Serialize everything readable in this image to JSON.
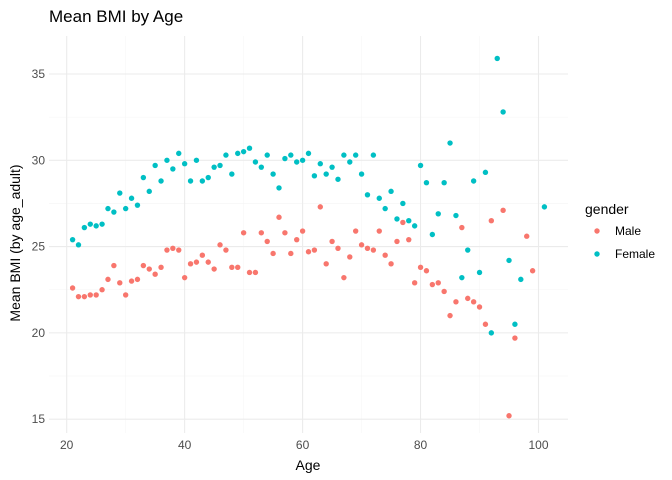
{
  "chart_data": {
    "type": "scatter",
    "title": "Mean BMI by Age",
    "xlabel": "Age",
    "ylabel": "Mean BMI (by age_adult)",
    "xlim": [
      17,
      105
    ],
    "ylim": [
      14.2,
      37.2
    ],
    "x_ticks": [
      20,
      40,
      60,
      80,
      100
    ],
    "y_ticks": [
      15,
      20,
      25,
      30,
      35
    ],
    "grid": true,
    "legend": {
      "title": "gender",
      "position": "right"
    },
    "series": [
      {
        "name": "Male",
        "color": "#F8766D",
        "points": [
          [
            21,
            22.6
          ],
          [
            22,
            22.1
          ],
          [
            23,
            22.1
          ],
          [
            24,
            22.2
          ],
          [
            25,
            22.2
          ],
          [
            26,
            22.5
          ],
          [
            27,
            23.1
          ],
          [
            28,
            23.9
          ],
          [
            29,
            22.9
          ],
          [
            30,
            22.2
          ],
          [
            31,
            23.0
          ],
          [
            32,
            23.1
          ],
          [
            33,
            23.9
          ],
          [
            34,
            23.7
          ],
          [
            35,
            23.4
          ],
          [
            36,
            23.8
          ],
          [
            37,
            24.8
          ],
          [
            38,
            24.9
          ],
          [
            39,
            24.8
          ],
          [
            40,
            23.2
          ],
          [
            41,
            24.0
          ],
          [
            42,
            24.1
          ],
          [
            43,
            24.5
          ],
          [
            44,
            24.1
          ],
          [
            45,
            23.7
          ],
          [
            46,
            25.1
          ],
          [
            47,
            24.8
          ],
          [
            48,
            23.8
          ],
          [
            49,
            23.8
          ],
          [
            50,
            25.8
          ],
          [
            51,
            23.5
          ],
          [
            52,
            23.5
          ],
          [
            53,
            25.8
          ],
          [
            54,
            25.3
          ],
          [
            55,
            24.6
          ],
          [
            56,
            26.7
          ],
          [
            57,
            25.8
          ],
          [
            58,
            24.6
          ],
          [
            59,
            25.4
          ],
          [
            60,
            25.9
          ],
          [
            61,
            24.7
          ],
          [
            62,
            24.8
          ],
          [
            63,
            27.3
          ],
          [
            64,
            24.0
          ],
          [
            65,
            25.3
          ],
          [
            66,
            24.9
          ],
          [
            67,
            23.2
          ],
          [
            68,
            24.4
          ],
          [
            69,
            25.9
          ],
          [
            70,
            25.1
          ],
          [
            71,
            24.9
          ],
          [
            72,
            24.8
          ],
          [
            73,
            25.9
          ],
          [
            74,
            24.5
          ],
          [
            75,
            24.0
          ],
          [
            76,
            25.3
          ],
          [
            77,
            26.4
          ],
          [
            78,
            25.4
          ],
          [
            79,
            22.9
          ],
          [
            80,
            23.8
          ],
          [
            81,
            23.6
          ],
          [
            82,
            22.8
          ],
          [
            83,
            22.9
          ],
          [
            84,
            22.4
          ],
          [
            85,
            21.0
          ],
          [
            86,
            21.8
          ],
          [
            87,
            26.1
          ],
          [
            88,
            22.0
          ],
          [
            89,
            21.8
          ],
          [
            90,
            21.5
          ],
          [
            91,
            20.5
          ],
          [
            92,
            26.5
          ],
          [
            94,
            27.1
          ],
          [
            95,
            15.2
          ],
          [
            96,
            19.7
          ],
          [
            98,
            25.6
          ],
          [
            99,
            23.6
          ]
        ]
      },
      {
        "name": "Female",
        "color": "#00BFC4",
        "points": [
          [
            21,
            25.4
          ],
          [
            22,
            25.1
          ],
          [
            23,
            26.1
          ],
          [
            24,
            26.3
          ],
          [
            25,
            26.2
          ],
          [
            26,
            26.3
          ],
          [
            27,
            27.2
          ],
          [
            28,
            27.0
          ],
          [
            29,
            28.1
          ],
          [
            30,
            27.2
          ],
          [
            31,
            27.8
          ],
          [
            32,
            27.4
          ],
          [
            33,
            29.0
          ],
          [
            34,
            28.2
          ],
          [
            35,
            29.7
          ],
          [
            36,
            28.8
          ],
          [
            37,
            30.0
          ],
          [
            38,
            29.5
          ],
          [
            39,
            30.4
          ],
          [
            40,
            29.8
          ],
          [
            41,
            28.8
          ],
          [
            42,
            30.0
          ],
          [
            43,
            28.8
          ],
          [
            44,
            29.0
          ],
          [
            45,
            29.6
          ],
          [
            46,
            29.7
          ],
          [
            47,
            30.3
          ],
          [
            48,
            29.2
          ],
          [
            49,
            30.4
          ],
          [
            50,
            30.5
          ],
          [
            51,
            30.7
          ],
          [
            52,
            29.9
          ],
          [
            53,
            29.6
          ],
          [
            54,
            30.3
          ],
          [
            55,
            29.2
          ],
          [
            56,
            28.4
          ],
          [
            57,
            30.1
          ],
          [
            58,
            30.3
          ],
          [
            59,
            29.9
          ],
          [
            60,
            30.0
          ],
          [
            61,
            30.4
          ],
          [
            62,
            29.1
          ],
          [
            63,
            29.8
          ],
          [
            64,
            29.2
          ],
          [
            65,
            29.6
          ],
          [
            66,
            28.9
          ],
          [
            67,
            30.3
          ],
          [
            68,
            29.9
          ],
          [
            69,
            30.3
          ],
          [
            70,
            29.2
          ],
          [
            71,
            28.0
          ],
          [
            72,
            30.3
          ],
          [
            73,
            27.8
          ],
          [
            74,
            27.2
          ],
          [
            75,
            28.2
          ],
          [
            76,
            26.6
          ],
          [
            77,
            27.5
          ],
          [
            78,
            26.5
          ],
          [
            79,
            26.2
          ],
          [
            80,
            29.7
          ],
          [
            81,
            28.7
          ],
          [
            82,
            25.7
          ],
          [
            83,
            26.9
          ],
          [
            84,
            28.7
          ],
          [
            85,
            31.0
          ],
          [
            86,
            26.8
          ],
          [
            87,
            23.2
          ],
          [
            88,
            24.8
          ],
          [
            89,
            28.8
          ],
          [
            90,
            23.5
          ],
          [
            91,
            29.3
          ],
          [
            92,
            20.0
          ],
          [
            93,
            35.9
          ],
          [
            94,
            32.8
          ],
          [
            95,
            24.2
          ],
          [
            96,
            20.5
          ],
          [
            97,
            23.1
          ],
          [
            101,
            27.3
          ]
        ]
      }
    ]
  }
}
